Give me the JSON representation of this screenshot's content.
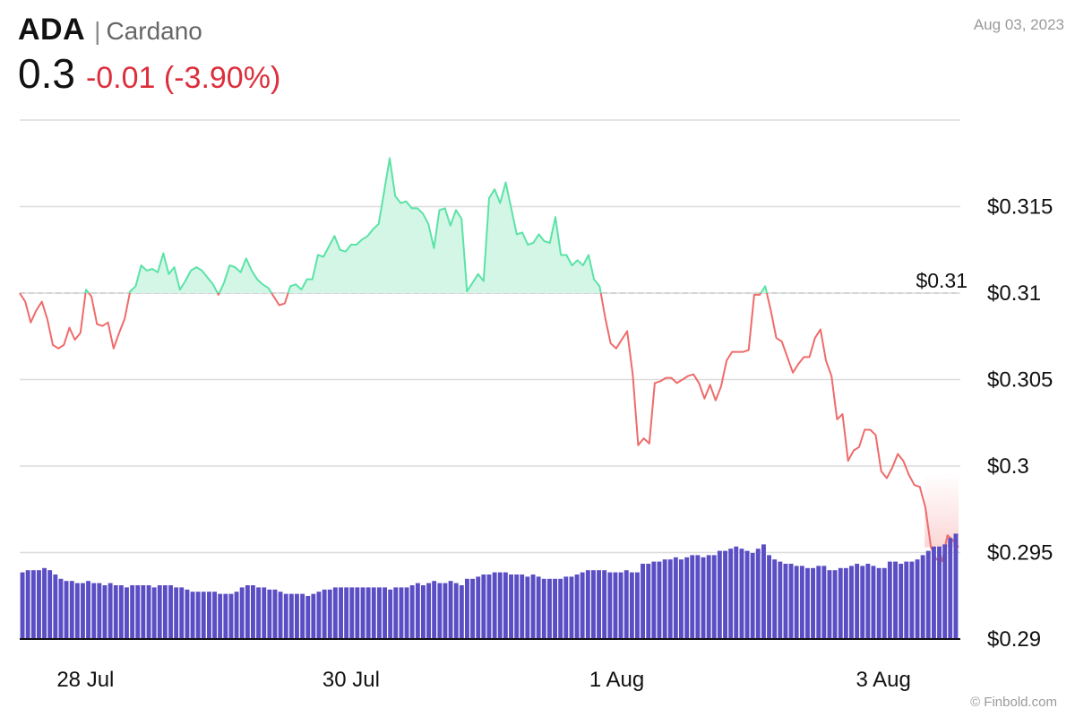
{
  "header": {
    "ticker": "ADA",
    "separator": "|",
    "name": "Cardano",
    "price": "0.3",
    "change": "-0.01 (-3.90%)",
    "date": "Aug 03, 2023"
  },
  "credit": "© Finbold.com",
  "colors": {
    "up_line": "#5be3a6",
    "up_fill": "#d3f6e6",
    "down_line": "#ef6b6b",
    "down_fill": "#fbd7d7",
    "change_text": "#dc2f3c",
    "volume": "#5b4ec4",
    "grid": "#dcdcdc",
    "ref_line": "#cccccc"
  },
  "chart_data": {
    "type": "line",
    "ylim": [
      0.29,
      0.32
    ],
    "yticks": [
      0.29,
      0.295,
      0.3,
      0.305,
      0.31,
      0.315
    ],
    "ytick_labels": [
      "$0.29",
      "$0.295",
      "$0.3",
      "$0.305",
      "$0.31",
      "$0.315"
    ],
    "xticks": [
      {
        "t": 0.07,
        "label": "28 Jul"
      },
      {
        "t": 0.353,
        "label": "30 Jul"
      },
      {
        "t": 0.636,
        "label": "1 Aug"
      },
      {
        "t": 0.92,
        "label": "3 Aug"
      }
    ],
    "reference": {
      "value": 0.31,
      "label": "$0.31"
    },
    "grid": true,
    "price": [
      0.31,
      0.3095,
      0.3083,
      0.309,
      0.3095,
      0.3085,
      0.307,
      0.3068,
      0.307,
      0.308,
      0.3073,
      0.3077,
      0.3102,
      0.3098,
      0.3082,
      0.3081,
      0.3083,
      0.3068,
      0.3077,
      0.3085,
      0.3101,
      0.3104,
      0.3116,
      0.3113,
      0.3114,
      0.3112,
      0.3123,
      0.3111,
      0.3115,
      0.3102,
      0.3107,
      0.3113,
      0.3115,
      0.3113,
      0.3109,
      0.3105,
      0.3099,
      0.3106,
      0.3116,
      0.3115,
      0.3112,
      0.312,
      0.3113,
      0.3108,
      0.3105,
      0.3103,
      0.3098,
      0.3093,
      0.3094,
      0.3104,
      0.3105,
      0.3102,
      0.3108,
      0.3108,
      0.3122,
      0.3121,
      0.3127,
      0.3133,
      0.3125,
      0.3124,
      0.3128,
      0.3128,
      0.3131,
      0.3133,
      0.3137,
      0.314,
      0.3159,
      0.3178,
      0.3156,
      0.3152,
      0.3153,
      0.3149,
      0.3149,
      0.3146,
      0.314,
      0.3126,
      0.3148,
      0.3149,
      0.3139,
      0.3148,
      0.3143,
      0.3101,
      0.3106,
      0.3111,
      0.3107,
      0.3155,
      0.316,
      0.3152,
      0.3164,
      0.3149,
      0.3134,
      0.3135,
      0.3128,
      0.3129,
      0.3134,
      0.313,
      0.3129,
      0.3144,
      0.3122,
      0.3122,
      0.3116,
      0.3119,
      0.3116,
      0.3122,
      0.3108,
      0.3104,
      0.3086,
      0.3071,
      0.3068,
      0.3073,
      0.3078,
      0.3053,
      0.3012,
      0.3016,
      0.3013,
      0.3048,
      0.3049,
      0.3051,
      0.3051,
      0.3048,
      0.305,
      0.3052,
      0.3053,
      0.3048,
      0.3039,
      0.3047,
      0.3038,
      0.3046,
      0.3061,
      0.3066,
      0.3066,
      0.3066,
      0.3067,
      0.3099,
      0.3099,
      0.3104,
      0.309,
      0.3074,
      0.3072,
      0.3063,
      0.3054,
      0.3059,
      0.3063,
      0.3063,
      0.3074,
      0.3079,
      0.3061,
      0.3052,
      0.3027,
      0.303,
      0.3003,
      0.3009,
      0.3011,
      0.3021,
      0.3021,
      0.3018,
      0.2997,
      0.2993,
      0.2999,
      0.3007,
      0.3003,
      0.2995,
      0.2989,
      0.2988,
      0.2976,
      0.2953,
      0.2946,
      0.2945,
      0.296,
      0.2957,
      0.2953
    ],
    "volume_axis_max": 1.0,
    "volume": [
      0.31,
      0.32,
      0.32,
      0.32,
      0.33,
      0.32,
      0.3,
      0.28,
      0.27,
      0.27,
      0.26,
      0.26,
      0.27,
      0.26,
      0.26,
      0.25,
      0.26,
      0.25,
      0.25,
      0.24,
      0.25,
      0.25,
      0.25,
      0.25,
      0.24,
      0.25,
      0.25,
      0.25,
      0.24,
      0.24,
      0.23,
      0.22,
      0.22,
      0.22,
      0.22,
      0.22,
      0.21,
      0.21,
      0.21,
      0.22,
      0.24,
      0.25,
      0.25,
      0.24,
      0.24,
      0.23,
      0.23,
      0.22,
      0.21,
      0.21,
      0.21,
      0.21,
      0.2,
      0.21,
      0.22,
      0.23,
      0.23,
      0.24,
      0.24,
      0.24,
      0.24,
      0.24,
      0.24,
      0.24,
      0.24,
      0.24,
      0.24,
      0.23,
      0.24,
      0.24,
      0.24,
      0.25,
      0.26,
      0.25,
      0.26,
      0.27,
      0.26,
      0.26,
      0.27,
      0.26,
      0.25,
      0.28,
      0.28,
      0.29,
      0.3,
      0.3,
      0.31,
      0.31,
      0.31,
      0.3,
      0.3,
      0.3,
      0.29,
      0.3,
      0.29,
      0.28,
      0.28,
      0.28,
      0.28,
      0.29,
      0.29,
      0.3,
      0.31,
      0.32,
      0.32,
      0.32,
      0.32,
      0.31,
      0.31,
      0.31,
      0.32,
      0.31,
      0.31,
      0.35,
      0.35,
      0.36,
      0.36,
      0.37,
      0.37,
      0.38,
      0.37,
      0.38,
      0.39,
      0.39,
      0.38,
      0.39,
      0.39,
      0.41,
      0.41,
      0.42,
      0.43,
      0.42,
      0.41,
      0.4,
      0.42,
      0.44,
      0.39,
      0.37,
      0.36,
      0.35,
      0.35,
      0.34,
      0.34,
      0.33,
      0.33,
      0.34,
      0.34,
      0.32,
      0.32,
      0.33,
      0.33,
      0.34,
      0.35,
      0.34,
      0.35,
      0.34,
      0.33,
      0.33,
      0.36,
      0.36,
      0.35,
      0.36,
      0.36,
      0.37,
      0.39,
      0.41,
      0.43,
      0.43,
      0.44,
      0.47,
      0.49
    ]
  }
}
